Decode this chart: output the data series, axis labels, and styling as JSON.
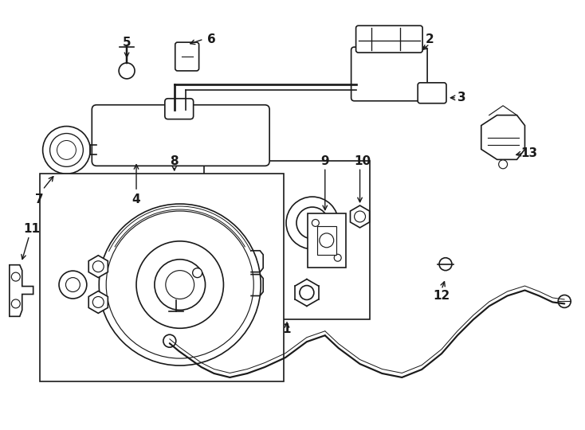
{
  "bg_color": "#ffffff",
  "line_color": "#1a1a1a",
  "lw": 1.2,
  "fig_width": 7.34,
  "fig_height": 5.4
}
